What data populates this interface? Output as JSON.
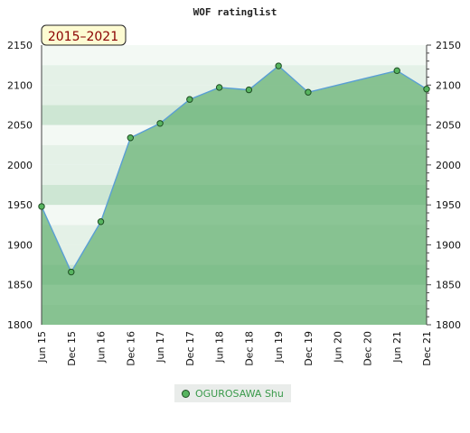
{
  "chart_data": {
    "type": "area",
    "title": "WOF ratinglist",
    "period_label": "2015–2021",
    "xlabel": "",
    "ylabel": "",
    "ylim": [
      1800,
      2150
    ],
    "yticks": [
      1800,
      1850,
      1900,
      1950,
      2000,
      2050,
      2100,
      2150
    ],
    "categories": [
      "Jun 15",
      "Dec 15",
      "Jun 16",
      "Dec 16",
      "Jun 17",
      "Dec 17",
      "Jun 18",
      "Dec 18",
      "Jun 19",
      "Dec 19",
      "Jun 20",
      "Dec 20",
      "Jun 21",
      "Dec 21"
    ],
    "series": [
      {
        "name": "OGUROSAWA Shu",
        "points": [
          {
            "x": "Jun 15",
            "y": 1948
          },
          {
            "x": "Dec 15",
            "y": 1866
          },
          {
            "x": "Jun 16",
            "y": 1929
          },
          {
            "x": "Dec 16",
            "y": 2034
          },
          {
            "x": "Jun 17",
            "y": 2052
          },
          {
            "x": "Dec 17",
            "y": 2082
          },
          {
            "x": "Jun 18",
            "y": 2097
          },
          {
            "x": "Dec 18",
            "y": 2094
          },
          {
            "x": "Jun 19",
            "y": 2124
          },
          {
            "x": "Dec 19",
            "y": 2091
          },
          {
            "x": "Jun 21",
            "y": 2118
          },
          {
            "x": "Dec 21",
            "y": 2095
          }
        ]
      }
    ],
    "grid": false,
    "legend_position": "bottom",
    "colors": {
      "area": "#63b070",
      "line": "#5a9fd4",
      "marker": "#57b45f",
      "marker_edge": "#1d4d22",
      "legend_text": "#3a9a4b",
      "badge_fill": "#fdfbd2",
      "badge_text": "#8a0000"
    }
  }
}
